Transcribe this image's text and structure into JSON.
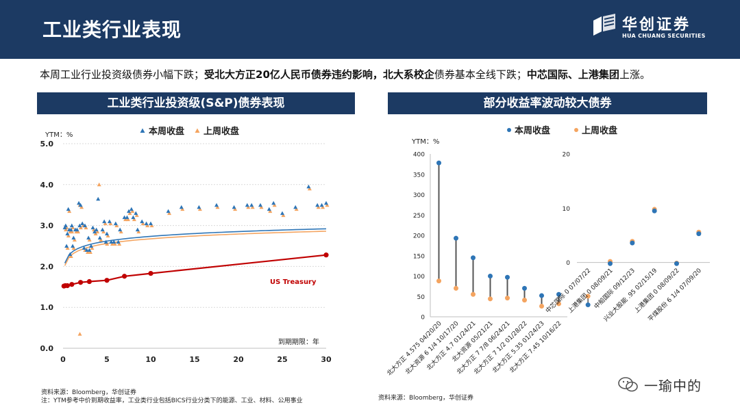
{
  "header": {
    "title": "工业类行业表现",
    "logo_cn": "华创证券",
    "logo_en": "HUA CHUANG SECURITIES"
  },
  "summary": {
    "p1": "本周工业行业投资级债券小幅下跌；",
    "p2": "受北大方正20亿人民币债券违约影响，北大系校企",
    "p3": "债券基本全线下跌；",
    "p4": "中芯国际、上港集团",
    "p5": "上涨。"
  },
  "left_panel": {
    "title": "工业类行业投资级(S&P)债券表现"
  },
  "right_panel": {
    "title": "部分收益率波动较大债券"
  },
  "colors": {
    "navy": "#1c3a63",
    "this_week": "#2e75b6",
    "last_week": "#f4a460",
    "treasury": "#c00000",
    "dumbbell": "#555555"
  },
  "chart_data": [
    {
      "type": "scatter",
      "title": "工业类行业投资级(S&P)债券表现",
      "ylabel": "YTM：%",
      "xlabel": "到期期限：年",
      "xlim": [
        0,
        30
      ],
      "ylim": [
        0,
        5
      ],
      "xticks": [
        "0",
        "5",
        "10",
        "15",
        "20",
        "25",
        "30"
      ],
      "yticks": [
        "0.0",
        "1.0",
        "2.0",
        "3.0",
        "4.0",
        "5.0"
      ],
      "legend": [
        "本周收盘",
        "上周收盘"
      ],
      "treasury_label": "US Treasury",
      "series": [
        {
          "name": "本周收盘",
          "x": [
            0.2,
            0.3,
            0.4,
            0.5,
            0.6,
            0.7,
            0.8,
            0.9,
            1.0,
            1.1,
            1.2,
            1.4,
            1.6,
            1.8,
            1.9,
            2.0,
            2.2,
            2.4,
            2.5,
            2.7,
            2.9,
            3.0,
            3.2,
            3.4,
            3.6,
            3.8,
            4.0,
            4.2,
            4.5,
            4.7,
            4.9,
            5.0,
            5.3,
            5.5,
            5.8,
            6.0,
            6.3,
            6.5,
            7.0,
            7.3,
            7.5,
            7.8,
            8.0,
            8.3,
            8.5,
            9.0,
            9.5,
            10.0,
            12.0,
            13.5,
            15.5,
            17.5,
            19.5,
            21.0,
            21.5,
            22.5,
            23.5,
            24.0,
            25.0,
            26.5,
            28.0,
            29.0,
            29.5,
            30.0
          ],
          "y": [
            2.95,
            3.0,
            2.5,
            2.8,
            3.4,
            2.9,
            2.3,
            2.9,
            3.0,
            2.5,
            2.7,
            2.9,
            2.9,
            3.55,
            3.0,
            3.5,
            3.05,
            2.45,
            3.0,
            2.4,
            2.7,
            2.4,
            2.5,
            2.95,
            2.85,
            2.9,
            3.65,
            2.7,
            2.9,
            3.1,
            2.6,
            2.8,
            3.1,
            2.6,
            2.6,
            3.05,
            2.6,
            2.9,
            3.2,
            3.2,
            3.35,
            3.4,
            3.2,
            3.3,
            2.9,
            3.1,
            3.05,
            3.05,
            3.35,
            3.45,
            3.45,
            3.5,
            3.45,
            3.5,
            3.5,
            3.5,
            3.4,
            3.55,
            3.3,
            3.45,
            3.95,
            3.5,
            3.5,
            3.55
          ]
        },
        {
          "name": "上周收盘",
          "x": [
            0.2,
            0.3,
            0.4,
            0.5,
            0.6,
            0.7,
            0.8,
            0.9,
            1.0,
            1.1,
            1.2,
            1.4,
            1.6,
            1.8,
            1.9,
            2.0,
            2.2,
            2.4,
            2.5,
            2.7,
            2.9,
            3.0,
            3.2,
            3.4,
            3.6,
            3.8,
            4.0,
            4.2,
            4.5,
            4.7,
            4.9,
            5.0,
            5.3,
            5.5,
            5.8,
            6.0,
            6.3,
            6.5,
            7.0,
            7.3,
            7.5,
            7.8,
            8.0,
            8.3,
            8.5,
            9.0,
            9.5,
            10.0,
            12.0,
            13.5,
            15.5,
            17.5,
            19.5,
            21.0,
            21.5,
            22.5,
            23.5,
            24.0,
            25.0,
            26.5,
            28.0,
            29.0,
            29.5,
            30.0,
            1.8
          ],
          "y": [
            2.9,
            2.95,
            2.45,
            2.75,
            3.35,
            2.85,
            2.25,
            2.85,
            2.95,
            2.45,
            2.65,
            2.85,
            2.85,
            3.5,
            2.95,
            3.45,
            3.0,
            2.4,
            2.95,
            2.35,
            2.65,
            2.35,
            2.45,
            2.9,
            2.8,
            2.85,
            4.0,
            2.65,
            2.85,
            3.05,
            2.55,
            2.75,
            3.05,
            2.55,
            2.55,
            3.0,
            2.55,
            2.85,
            3.15,
            3.15,
            3.3,
            3.35,
            3.15,
            3.25,
            2.85,
            3.05,
            3.0,
            3.0,
            3.3,
            3.4,
            3.4,
            3.45,
            3.4,
            3.45,
            3.45,
            3.45,
            3.35,
            3.5,
            3.25,
            3.4,
            3.9,
            3.45,
            3.45,
            3.5,
            0.35
          ]
        },
        {
          "name": "US Treasury",
          "x": [
            0.1,
            0.25,
            0.5,
            1.0,
            2.0,
            3.0,
            5.0,
            7.0,
            10.0,
            30.0
          ],
          "y": [
            1.52,
            1.53,
            1.53,
            1.56,
            1.61,
            1.63,
            1.66,
            1.76,
            1.83,
            2.28
          ]
        }
      ]
    },
    {
      "type": "dumbbell",
      "ylabel": "YTM：%",
      "legend": [
        "本周收盘",
        "上周收盘"
      ],
      "ylim": [
        0,
        400
      ],
      "yticks": [
        "0",
        "50",
        "100",
        "150",
        "200",
        "250",
        "300",
        "350",
        "400"
      ],
      "categories": [
        "北大方正 4.575 04/20/20",
        "北大资源 6 1/4 10/17/20",
        "北大方正 4.7 01/24/21",
        "北大资源 05/21/21",
        "北大方正 7 7/8 06/24/21",
        "北大方正 7 1/2 01/28/22",
        "北大方正 5.35 01/24/23",
        "北大方正 7.45 10/16/22"
      ],
      "this_week": [
        378,
        193,
        145,
        100,
        97,
        70,
        52,
        55
      ],
      "last_week": [
        88,
        70,
        55,
        44,
        46,
        41,
        26,
        32
      ]
    },
    {
      "type": "dumbbell",
      "ylim": [
        -10,
        20
      ],
      "yticks": [
        "0",
        "10",
        "20"
      ],
      "categories": [
        "中芯国际 0 07/07/22",
        "上港集团 0 08/09/21",
        "中船国际 09/12/23",
        "兴业大股能 .95 02/15/19",
        "上港集团 0 08/09/22",
        "平煤股份 6 1/4 07/09/20"
      ],
      "this_week": [
        -7.8,
        -0.2,
        3.6,
        9.5,
        -0.2,
        5.3
      ],
      "last_week": [
        -6.2,
        0.2,
        3.9,
        9.8,
        -0.1,
        5.6
      ]
    }
  ],
  "notes": {
    "source_left": "资料来源：Bloomberg，华创证券",
    "footnote_left": "注：YTM参考中价到期收益率，工业类行业包括BICS行业分类下的能源、工业、材料、公用事业",
    "source_right": "资料来源：Bloomberg，华创证券"
  },
  "watermark": {
    "text": "一瑜中的"
  }
}
